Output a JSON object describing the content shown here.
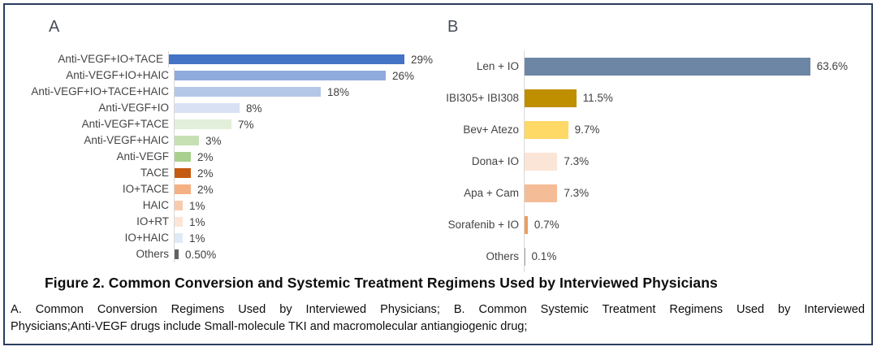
{
  "figure": {
    "caption": "Figure 2. Common Conversion and Systemic Treatment Regimens Used by Interviewed Physicians",
    "footnote_line1": "A. Common Conversion Regimens Used by Interviewed Physicians; B. Common Systemic Treatment Regimens Used by Interviewed",
    "footnote_line2": "Physicians;Anti-VEGF drugs include Small-molecule TKI and macromolecular antiangiogenic drug;"
  },
  "chart_data": [
    {
      "type": "bar",
      "orientation": "horizontal",
      "panel_label": "A",
      "title": "Common Conversion Regimens Used by Interviewed Physicians",
      "categories": [
        "Anti-VEGF+IO+TACE",
        "Anti-VEGF+IO+HAIC",
        "Anti-VEGF+IO+TACE+HAIC",
        "Anti-VEGF+IO",
        "Anti-VEGF+TACE",
        "Anti-VEGF+HAIC",
        "Anti-VEGF",
        "TACE",
        "IO+TACE",
        "HAIC",
        "IO+RT",
        "IO+HAIC",
        "Others"
      ],
      "values": [
        29,
        26,
        18,
        8,
        7,
        3,
        2,
        2,
        2,
        1,
        1,
        1,
        0.5
      ],
      "value_labels": [
        "29%",
        "26%",
        "18%",
        "8%",
        "7%",
        "3%",
        "2%",
        "2%",
        "2%",
        "1%",
        "1%",
        "1%",
        "0.50%"
      ],
      "colors": [
        "#4472C4",
        "#8FAADC",
        "#B4C7E7",
        "#D9E2F3",
        "#E2EFDA",
        "#C6E0B4",
        "#A9D08E",
        "#C55A11",
        "#F4B183",
        "#F8CBAD",
        "#FBE5D6",
        "#DEEBF7",
        "#636363"
      ],
      "xlim": [
        0,
        30
      ],
      "grid": false,
      "axis_line_color": "#D8D8D8",
      "value_label_position": "end"
    },
    {
      "type": "bar",
      "orientation": "horizontal",
      "panel_label": "B",
      "title": "Common Systemic Treatment Regimens Used by Interviewed Physicians",
      "categories": [
        "Len + IO",
        "IBI305+ IBI308",
        "Bev+ Atezo",
        "Dona+ IO",
        "Apa + Cam",
        "Sorafenib + IO",
        "Others"
      ],
      "values": [
        63.6,
        11.5,
        9.7,
        7.3,
        7.3,
        0.7,
        0.1
      ],
      "value_labels": [
        "63.6%",
        "11.5%",
        "9.7%",
        "7.3%",
        "7.3%",
        "0.7%",
        "0.1%"
      ],
      "colors": [
        "#6D86A5",
        "#BF8F00",
        "#FFD966",
        "#FBE5D6",
        "#F4BD97",
        "#ED9D5D",
        "#A6A6A6"
      ],
      "xlim": [
        0,
        65
      ],
      "grid": false,
      "axis_line_color": "#D8D8D8",
      "value_label_position": "end"
    }
  ]
}
